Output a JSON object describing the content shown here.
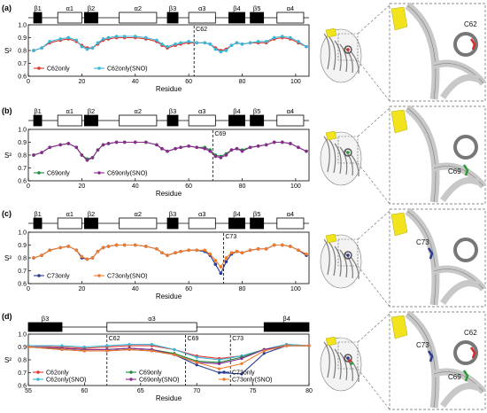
{
  "chart_data": [
    {
      "type": "line",
      "panel_label": "(a)",
      "xlabel": "Residue",
      "ylabel": "S²",
      "xlim": [
        0,
        105
      ],
      "ylim": [
        0.6,
        1.0
      ],
      "x_ticks": [
        "0",
        "20",
        "40",
        "60",
        "80",
        "100"
      ],
      "y_ticks": [
        "0.6",
        "0.7",
        "0.8",
        "0.9",
        "1.0"
      ],
      "marker": {
        "residue": 62,
        "label": "C62"
      },
      "series": [
        {
          "name": "C62only",
          "color": "#e0342f",
          "x": [
            2,
            5,
            8,
            12,
            15,
            18,
            20,
            22,
            24,
            26,
            28,
            30,
            33,
            36,
            40,
            44,
            48,
            50,
            52,
            55,
            57,
            60,
            63,
            66,
            68,
            70,
            72,
            74,
            76,
            78,
            80,
            83,
            86,
            89,
            92,
            95,
            98,
            101,
            104
          ],
          "y": [
            0.8,
            0.82,
            0.86,
            0.88,
            0.89,
            0.87,
            0.84,
            0.82,
            0.82,
            0.85,
            0.88,
            0.89,
            0.9,
            0.9,
            0.9,
            0.89,
            0.87,
            0.84,
            0.82,
            0.84,
            0.85,
            0.86,
            0.86,
            0.86,
            0.85,
            0.82,
            0.8,
            0.81,
            0.84,
            0.86,
            0.85,
            0.86,
            0.86,
            0.86,
            0.89,
            0.9,
            0.89,
            0.86,
            0.83
          ]
        },
        {
          "name": "C62only(SNO)",
          "color": "#3ab7d8",
          "x": [
            2,
            5,
            8,
            12,
            15,
            18,
            20,
            22,
            24,
            26,
            28,
            30,
            33,
            36,
            40,
            44,
            48,
            50,
            52,
            55,
            57,
            60,
            63,
            66,
            68,
            70,
            72,
            74,
            76,
            78,
            80,
            83,
            86,
            89,
            92,
            95,
            98,
            101,
            104
          ],
          "y": [
            0.8,
            0.82,
            0.87,
            0.89,
            0.9,
            0.88,
            0.83,
            0.81,
            0.82,
            0.86,
            0.89,
            0.9,
            0.91,
            0.91,
            0.91,
            0.9,
            0.88,
            0.85,
            0.83,
            0.85,
            0.86,
            0.87,
            0.86,
            0.86,
            0.85,
            0.81,
            0.79,
            0.8,
            0.84,
            0.86,
            0.85,
            0.86,
            0.87,
            0.87,
            0.9,
            0.91,
            0.9,
            0.87,
            0.83
          ]
        }
      ]
    },
    {
      "type": "line",
      "panel_label": "(b)",
      "xlabel": "Residue",
      "ylabel": "S²",
      "xlim": [
        0,
        105
      ],
      "ylim": [
        0.6,
        1.0
      ],
      "x_ticks": [
        "0",
        "20",
        "40",
        "60",
        "80",
        "100"
      ],
      "y_ticks": [
        "0.6",
        "0.7",
        "0.8",
        "0.9",
        "1.0"
      ],
      "marker": {
        "residue": 69,
        "label": "C69"
      },
      "series": [
        {
          "name": "C69only",
          "color": "#1f8a3b",
          "x": [
            2,
            5,
            8,
            12,
            15,
            18,
            20,
            22,
            24,
            26,
            28,
            30,
            33,
            36,
            40,
            44,
            48,
            50,
            52,
            55,
            57,
            60,
            63,
            66,
            68,
            70,
            72,
            74,
            76,
            78,
            80,
            83,
            86,
            89,
            92,
            95,
            98,
            101,
            104
          ],
          "y": [
            0.8,
            0.82,
            0.86,
            0.88,
            0.89,
            0.86,
            0.8,
            0.77,
            0.78,
            0.84,
            0.88,
            0.89,
            0.9,
            0.9,
            0.9,
            0.9,
            0.88,
            0.85,
            0.83,
            0.85,
            0.86,
            0.87,
            0.86,
            0.86,
            0.84,
            0.8,
            0.79,
            0.81,
            0.84,
            0.85,
            0.84,
            0.86,
            0.87,
            0.88,
            0.9,
            0.9,
            0.89,
            0.86,
            0.83
          ]
        },
        {
          "name": "C69only(SNO)",
          "color": "#8b2a8f",
          "x": [
            2,
            5,
            8,
            12,
            15,
            18,
            20,
            22,
            24,
            26,
            28,
            30,
            33,
            36,
            40,
            44,
            48,
            50,
            52,
            55,
            57,
            60,
            63,
            66,
            68,
            70,
            72,
            74,
            76,
            78,
            80,
            83,
            86,
            89,
            92,
            95,
            98,
            101,
            104
          ],
          "y": [
            0.8,
            0.82,
            0.86,
            0.88,
            0.89,
            0.86,
            0.8,
            0.76,
            0.78,
            0.84,
            0.88,
            0.89,
            0.9,
            0.9,
            0.9,
            0.9,
            0.88,
            0.85,
            0.83,
            0.85,
            0.86,
            0.87,
            0.86,
            0.85,
            0.83,
            0.79,
            0.78,
            0.8,
            0.84,
            0.85,
            0.83,
            0.86,
            0.87,
            0.88,
            0.9,
            0.9,
            0.89,
            0.86,
            0.83
          ]
        }
      ]
    },
    {
      "type": "line",
      "panel_label": "(c)",
      "xlabel": "Residue",
      "ylabel": "S²",
      "xlim": [
        0,
        105
      ],
      "ylim": [
        0.6,
        1.0
      ],
      "x_ticks": [
        "0",
        "20",
        "40",
        "60",
        "80",
        "100"
      ],
      "y_ticks": [
        "0.6",
        "0.7",
        "0.8",
        "0.9",
        "1.0"
      ],
      "marker": {
        "residue": 73,
        "label": "C73"
      },
      "series": [
        {
          "name": "C73only",
          "color": "#2b3a8f",
          "x": [
            2,
            5,
            8,
            12,
            15,
            18,
            20,
            22,
            24,
            26,
            28,
            30,
            33,
            36,
            40,
            44,
            48,
            50,
            52,
            55,
            57,
            60,
            63,
            66,
            68,
            70,
            72,
            74,
            76,
            78,
            80,
            83,
            86,
            89,
            92,
            95,
            98,
            101,
            104
          ],
          "y": [
            0.8,
            0.82,
            0.86,
            0.88,
            0.89,
            0.86,
            0.8,
            0.79,
            0.8,
            0.85,
            0.88,
            0.89,
            0.9,
            0.9,
            0.9,
            0.89,
            0.87,
            0.84,
            0.82,
            0.84,
            0.85,
            0.86,
            0.86,
            0.85,
            0.82,
            0.75,
            0.68,
            0.77,
            0.83,
            0.85,
            0.84,
            0.86,
            0.87,
            0.87,
            0.9,
            0.9,
            0.89,
            0.86,
            0.82
          ]
        },
        {
          "name": "C73only(SNO)",
          "color": "#f07a2a",
          "x": [
            2,
            5,
            8,
            12,
            15,
            18,
            20,
            22,
            24,
            26,
            28,
            30,
            33,
            36,
            40,
            44,
            48,
            50,
            52,
            55,
            57,
            60,
            63,
            66,
            68,
            70,
            72,
            74,
            76,
            78,
            80,
            83,
            86,
            89,
            92,
            95,
            98,
            101,
            104
          ],
          "y": [
            0.8,
            0.82,
            0.86,
            0.88,
            0.89,
            0.86,
            0.81,
            0.79,
            0.8,
            0.85,
            0.88,
            0.89,
            0.9,
            0.9,
            0.9,
            0.89,
            0.87,
            0.84,
            0.82,
            0.84,
            0.85,
            0.86,
            0.86,
            0.86,
            0.83,
            0.78,
            0.73,
            0.8,
            0.84,
            0.85,
            0.84,
            0.86,
            0.87,
            0.87,
            0.9,
            0.9,
            0.89,
            0.86,
            0.83
          ]
        }
      ]
    },
    {
      "type": "line",
      "panel_label": "(d)",
      "xlabel": "Residue",
      "ylabel": "S²",
      "xlim": [
        55,
        80
      ],
      "ylim": [
        0.6,
        1.0
      ],
      "x_ticks": [
        "55",
        "60",
        "65",
        "70",
        "75",
        "80"
      ],
      "y_ticks": [
        "0.6",
        "0.7",
        "0.8",
        "0.9",
        "1.0"
      ],
      "markers": [
        {
          "residue": 62,
          "label": "C62"
        },
        {
          "residue": 69,
          "label": "C69"
        },
        {
          "residue": 73,
          "label": "C73"
        }
      ],
      "series": [
        {
          "name": "C62only",
          "color": "#e0342f",
          "x": [
            55,
            58,
            60,
            62,
            64,
            66,
            68,
            70,
            72,
            74,
            76,
            78,
            80
          ],
          "y": [
            0.91,
            0.9,
            0.89,
            0.9,
            0.91,
            0.91,
            0.88,
            0.83,
            0.81,
            0.83,
            0.88,
            0.92,
            0.91
          ]
        },
        {
          "name": "C62only(SNO)",
          "color": "#3ab7d8",
          "x": [
            55,
            58,
            60,
            62,
            64,
            66,
            68,
            70,
            72,
            74,
            76,
            78,
            80
          ],
          "y": [
            0.91,
            0.91,
            0.9,
            0.91,
            0.92,
            0.92,
            0.88,
            0.82,
            0.8,
            0.83,
            0.88,
            0.92,
            0.91
          ]
        },
        {
          "name": "C69only",
          "color": "#1f8a3b",
          "x": [
            55,
            58,
            60,
            62,
            64,
            66,
            68,
            70,
            72,
            74,
            76,
            78,
            80
          ],
          "y": [
            0.9,
            0.89,
            0.88,
            0.88,
            0.89,
            0.88,
            0.85,
            0.79,
            0.78,
            0.82,
            0.88,
            0.91,
            0.91
          ]
        },
        {
          "name": "C69only(SNO)",
          "color": "#8b2a8f",
          "x": [
            55,
            58,
            60,
            62,
            64,
            66,
            68,
            70,
            72,
            74,
            76,
            78,
            80
          ],
          "y": [
            0.9,
            0.89,
            0.88,
            0.88,
            0.89,
            0.88,
            0.84,
            0.78,
            0.77,
            0.81,
            0.88,
            0.91,
            0.91
          ]
        },
        {
          "name": "C73only",
          "color": "#2b3a8f",
          "x": [
            55,
            58,
            60,
            62,
            64,
            66,
            68,
            70,
            72,
            74,
            76,
            78,
            80
          ],
          "y": [
            0.9,
            0.88,
            0.87,
            0.87,
            0.88,
            0.87,
            0.84,
            0.76,
            0.7,
            0.69,
            0.85,
            0.91,
            0.91
          ]
        },
        {
          "name": "C73only(SNO)",
          "color": "#f07a2a",
          "x": [
            55,
            58,
            60,
            62,
            64,
            66,
            68,
            70,
            72,
            74,
            76,
            78,
            80
          ],
          "y": [
            0.9,
            0.88,
            0.87,
            0.87,
            0.88,
            0.87,
            0.84,
            0.78,
            0.73,
            0.77,
            0.87,
            0.91,
            0.91
          ]
        }
      ]
    }
  ],
  "secondary_structure": {
    "full": [
      {
        "label": "β1",
        "type": "strand",
        "start": 2,
        "end": 5
      },
      {
        "label": "α1",
        "type": "helix",
        "start": 11,
        "end": 20
      },
      {
        "label": "β2",
        "type": "strand",
        "start": 21,
        "end": 26
      },
      {
        "label": "α2",
        "type": "helix",
        "start": 34,
        "end": 48
      },
      {
        "label": "β3",
        "type": "strand",
        "start": 52,
        "end": 56
      },
      {
        "label": "α3",
        "type": "helix",
        "start": 60,
        "end": 70
      },
      {
        "label": "β4",
        "type": "strand",
        "start": 75,
        "end": 81
      },
      {
        "label": "β5",
        "type": "strand",
        "start": 83,
        "end": 88
      },
      {
        "label": "α4",
        "type": "helix",
        "start": 93,
        "end": 103
      }
    ],
    "zoom": [
      {
        "label": "β3",
        "type": "strand",
        "start": 55,
        "end": 58
      },
      {
        "label": "α3",
        "type": "helix",
        "start": 62,
        "end": 70
      },
      {
        "label": "β4",
        "type": "strand",
        "start": 76,
        "end": 80
      }
    ]
  },
  "structure_panels": [
    {
      "labels": [
        "C62"
      ],
      "label_color": "#111111",
      "highlight_colors": [
        "#d62c2c"
      ]
    },
    {
      "labels": [
        "C69"
      ],
      "label_color": "#111111",
      "highlight_colors": [
        "#2a9a3a"
      ]
    },
    {
      "labels": [
        "C73"
      ],
      "label_color": "#111111",
      "highlight_colors": [
        "#2b3a8f"
      ]
    },
    {
      "labels": [
        "C73",
        "C62",
        "C69"
      ],
      "label_color": "#111111",
      "highlight_colors": [
        "#2b3a8f",
        "#d62c2c",
        "#2a9a3a"
      ]
    }
  ],
  "colors": {
    "yellow_strand": "#f2e41c",
    "ribbon": "#c8c8c8",
    "ribbon_edge": "#7a7a7a"
  }
}
